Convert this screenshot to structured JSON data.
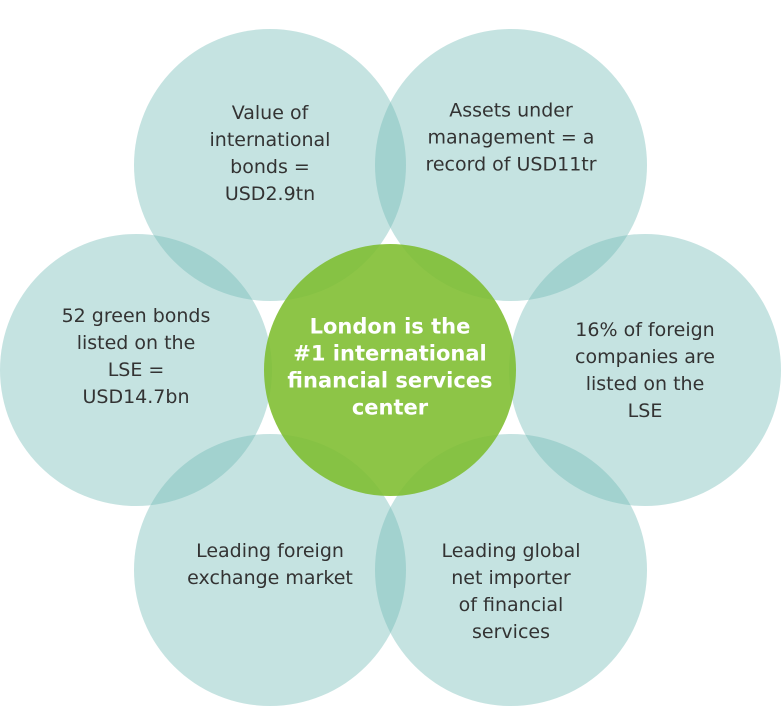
{
  "center": {
    "lines": [
      "London is the",
      "#1 international",
      "financial services",
      "center"
    ]
  },
  "nodes": [
    {
      "lines": [
        "Value of",
        "international",
        "bonds =",
        "USD2.9tn"
      ]
    },
    {
      "lines": [
        "Assets under",
        "management = a",
        "record of USD11tr"
      ]
    },
    {
      "lines": [
        "52 green bonds",
        "listed on the",
        "LSE =",
        "USD14.7bn"
      ]
    },
    {
      "lines": [
        "16% of foreign",
        "companies are",
        "listed on the",
        "LSE"
      ]
    },
    {
      "lines": [
        "Leading foreign",
        "exchange market"
      ]
    },
    {
      "lines": [
        "Leading global",
        "net importer",
        "of financial",
        "services"
      ]
    }
  ]
}
